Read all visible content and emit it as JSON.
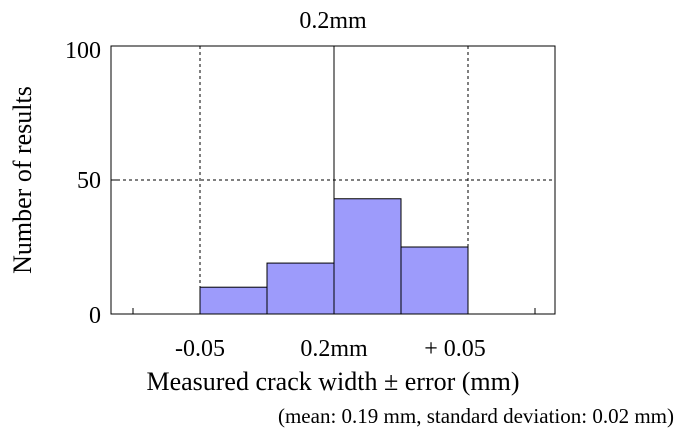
{
  "chart_data": {
    "type": "bar",
    "title": "0.2mm",
    "xlabel": "Measured crack width ± error (mm)",
    "ylabel": "Number of results",
    "x_tick_labels": [
      "-0.05",
      "0.2mm",
      "+ 0.05"
    ],
    "y_tick_labels": [
      "0",
      "50",
      "100"
    ],
    "ylim": [
      0,
      100
    ],
    "bins": [
      "-0.05 to -0.025",
      "-0.025 to 0",
      "0 to +0.025",
      "+0.025 to +0.05"
    ],
    "values": [
      10,
      19,
      43,
      25
    ],
    "bar_color": "#9d9bfb",
    "grid": true,
    "note": "(mean: 0.19 mm, standard deviation: 0.02 mm)"
  }
}
